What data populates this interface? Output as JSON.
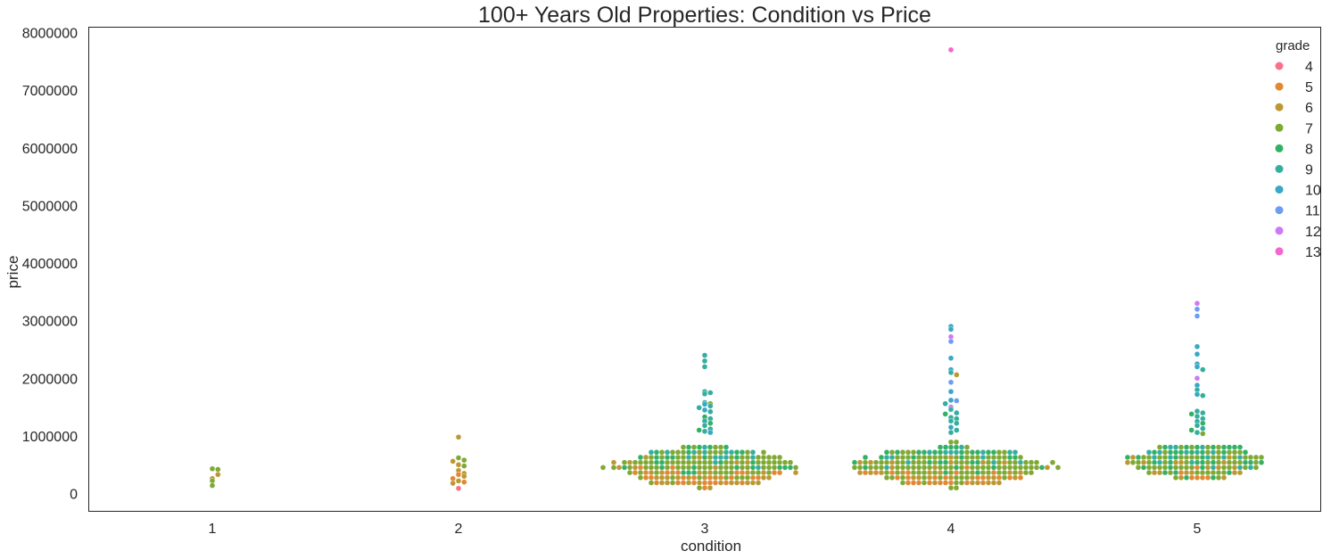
{
  "chart_data": {
    "type": "scatter",
    "subtype": "swarm",
    "title": "100+ Years Old Properties: Condition vs Price",
    "xlabel": "condition",
    "ylabel": "price",
    "categories": [
      "1",
      "2",
      "3",
      "4",
      "5"
    ],
    "yticks": [
      "0",
      "1000000",
      "2000000",
      "3000000",
      "4000000",
      "5000000",
      "6000000",
      "7000000",
      "8000000"
    ],
    "ylim": [
      -300000,
      8100000
    ],
    "grid": false,
    "legend": {
      "title": "grade",
      "position": "top-right",
      "entries": [
        {
          "label": "4",
          "color": "#f77189"
        },
        {
          "label": "5",
          "color": "#e18932"
        },
        {
          "label": "6",
          "color": "#bb9832"
        },
        {
          "label": "7",
          "color": "#7fa933"
        },
        {
          "label": "8",
          "color": "#32b166"
        },
        {
          "label": "9",
          "color": "#34ae9f"
        },
        {
          "label": "10",
          "color": "#38a8c5"
        },
        {
          "label": "11",
          "color": "#6e9bf4"
        },
        {
          "label": "12",
          "color": "#cc79f4"
        },
        {
          "label": "13",
          "color": "#f565cc"
        }
      ]
    },
    "points": [
      {
        "c": "1",
        "g": "7",
        "y": 430000
      },
      {
        "c": "1",
        "g": "7",
        "y": 420000
      },
      {
        "c": "1",
        "g": "6",
        "y": 260000
      },
      {
        "c": "1",
        "g": "7",
        "y": 220000
      },
      {
        "c": "1",
        "g": "7",
        "y": 140000
      },
      {
        "c": "1",
        "g": "6",
        "y": 330000
      },
      {
        "c": "2",
        "g": "6",
        "y": 980000
      },
      {
        "c": "2",
        "g": "7",
        "y": 620000
      },
      {
        "c": "2",
        "g": "7",
        "y": 580000
      },
      {
        "c": "2",
        "g": "6",
        "y": 560000
      },
      {
        "c": "2",
        "g": "6",
        "y": 500000
      },
      {
        "c": "2",
        "g": "7",
        "y": 480000
      },
      {
        "c": "2",
        "g": "6",
        "y": 400000
      },
      {
        "c": "2",
        "g": "6",
        "y": 350000
      },
      {
        "c": "2",
        "g": "5",
        "y": 330000
      },
      {
        "c": "2",
        "g": "6",
        "y": 300000
      },
      {
        "c": "2",
        "g": "5",
        "y": 260000
      },
      {
        "c": "2",
        "g": "6",
        "y": 220000
      },
      {
        "c": "2",
        "g": "5",
        "y": 200000
      },
      {
        "c": "2",
        "g": "6",
        "y": 180000
      },
      {
        "c": "2",
        "g": "4",
        "y": 90000
      },
      {
        "c": "3",
        "g": "9",
        "y": 2400000
      },
      {
        "c": "3",
        "g": "9",
        "y": 2300000
      },
      {
        "c": "3",
        "g": "9",
        "y": 2200000
      },
      {
        "c": "3",
        "g": "9",
        "y": 1770000
      },
      {
        "c": "3",
        "g": "9",
        "y": 1750000
      },
      {
        "c": "3",
        "g": "9",
        "y": 1730000
      },
      {
        "c": "3",
        "g": "9",
        "y": 1580000
      },
      {
        "c": "3",
        "g": "10",
        "y": 1550000
      },
      {
        "c": "3",
        "g": "7",
        "y": 1560000
      },
      {
        "c": "3",
        "g": "9",
        "y": 1520000
      },
      {
        "c": "3",
        "g": "9",
        "y": 1490000
      },
      {
        "c": "3",
        "g": "10",
        "y": 1450000
      },
      {
        "c": "3",
        "g": "9",
        "y": 1420000
      },
      {
        "c": "3",
        "g": "8",
        "y": 1330000
      },
      {
        "c": "3",
        "g": "9",
        "y": 1300000
      },
      {
        "c": "3",
        "g": "9",
        "y": 1260000
      },
      {
        "c": "3",
        "g": "8",
        "y": 1220000
      },
      {
        "c": "3",
        "g": "9",
        "y": 1180000
      },
      {
        "c": "3",
        "g": "9",
        "y": 1120000
      },
      {
        "c": "3",
        "g": "8",
        "y": 1100000
      },
      {
        "c": "3",
        "g": "9",
        "y": 1080000
      },
      {
        "c": "3",
        "g": "10",
        "y": 1060000
      },
      {
        "c": "4",
        "g": "13",
        "y": 7700000
      },
      {
        "c": "4",
        "g": "10",
        "y": 2900000
      },
      {
        "c": "4",
        "g": "10",
        "y": 2850000
      },
      {
        "c": "4",
        "g": "12",
        "y": 2720000
      },
      {
        "c": "4",
        "g": "11",
        "y": 2640000
      },
      {
        "c": "4",
        "g": "10",
        "y": 2350000
      },
      {
        "c": "4",
        "g": "10",
        "y": 2150000
      },
      {
        "c": "4",
        "g": "9",
        "y": 2100000
      },
      {
        "c": "4",
        "g": "6",
        "y": 2060000
      },
      {
        "c": "4",
        "g": "11",
        "y": 1930000
      },
      {
        "c": "4",
        "g": "10",
        "y": 1770000
      },
      {
        "c": "4",
        "g": "10",
        "y": 1620000
      },
      {
        "c": "4",
        "g": "11",
        "y": 1610000
      },
      {
        "c": "4",
        "g": "9",
        "y": 1560000
      },
      {
        "c": "4",
        "g": "12",
        "y": 1500000
      },
      {
        "c": "4",
        "g": "9",
        "y": 1460000
      },
      {
        "c": "4",
        "g": "9",
        "y": 1400000
      },
      {
        "c": "4",
        "g": "8",
        "y": 1380000
      },
      {
        "c": "4",
        "g": "9",
        "y": 1320000
      },
      {
        "c": "4",
        "g": "9",
        "y": 1300000
      },
      {
        "c": "4",
        "g": "9",
        "y": 1260000
      },
      {
        "c": "4",
        "g": "9",
        "y": 1220000
      },
      {
        "c": "4",
        "g": "10",
        "y": 1150000
      },
      {
        "c": "4",
        "g": "9",
        "y": 1100000
      },
      {
        "c": "4",
        "g": "9",
        "y": 1060000
      },
      {
        "c": "5",
        "g": "12",
        "y": 3300000
      },
      {
        "c": "5",
        "g": "11",
        "y": 3200000
      },
      {
        "c": "5",
        "g": "11",
        "y": 3080000
      },
      {
        "c": "5",
        "g": "10",
        "y": 2550000
      },
      {
        "c": "5",
        "g": "10",
        "y": 2420000
      },
      {
        "c": "5",
        "g": "10",
        "y": 2250000
      },
      {
        "c": "5",
        "g": "10",
        "y": 2200000
      },
      {
        "c": "5",
        "g": "9",
        "y": 2150000
      },
      {
        "c": "5",
        "g": "12",
        "y": 2000000
      },
      {
        "c": "5",
        "g": "10",
        "y": 1880000
      },
      {
        "c": "5",
        "g": "9",
        "y": 1800000
      },
      {
        "c": "5",
        "g": "10",
        "y": 1720000
      },
      {
        "c": "5",
        "g": "9",
        "y": 1700000
      },
      {
        "c": "5",
        "g": "9",
        "y": 1430000
      },
      {
        "c": "5",
        "g": "9",
        "y": 1400000
      },
      {
        "c": "5",
        "g": "8",
        "y": 1380000
      },
      {
        "c": "5",
        "g": "9",
        "y": 1340000
      },
      {
        "c": "5",
        "g": "9",
        "y": 1300000
      },
      {
        "c": "5",
        "g": "9",
        "y": 1250000
      },
      {
        "c": "5",
        "g": "8",
        "y": 1220000
      },
      {
        "c": "5",
        "g": "9",
        "y": 1180000
      },
      {
        "c": "5",
        "g": "9",
        "y": 1130000
      },
      {
        "c": "5",
        "g": "8",
        "y": 1100000
      },
      {
        "c": "5",
        "g": "9",
        "y": 1060000
      },
      {
        "c": "5",
        "g": "7",
        "y": 1040000
      }
    ],
    "dense": [
      {
        "c": "3",
        "center": 470000,
        "halfwidth": 0.42,
        "ymin": 100000,
        "ymax": 1050000,
        "count": 950
      },
      {
        "c": "4",
        "center": 480000,
        "halfwidth": 0.44,
        "ymin": 100000,
        "ymax": 1050000,
        "count": 900
      },
      {
        "c": "5",
        "center": 560000,
        "halfwidth": 0.3,
        "ymin": 140000,
        "ymax": 1050000,
        "count": 420
      }
    ]
  }
}
